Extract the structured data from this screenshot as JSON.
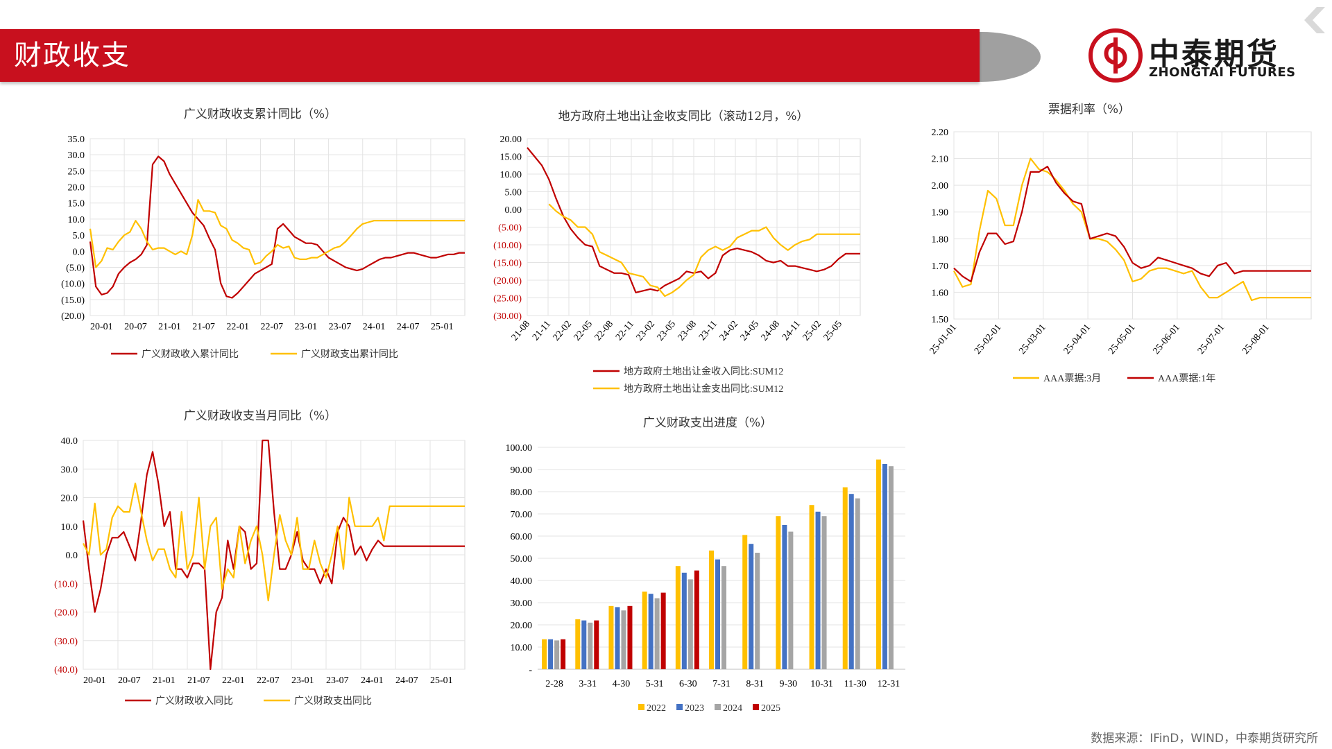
{
  "header": {
    "title": "财政收支"
  },
  "logo": {
    "cn": "中泰期货",
    "en": "ZHONGTAI FUTURES"
  },
  "source_text": "数据来源：IFinD，WIND，中泰期货研究所",
  "colors": {
    "red": "#c00000",
    "gold": "#ffc000",
    "blue": "#4472c4",
    "gray": "#a5a5a5",
    "brand": "#c8101e"
  },
  "chart_data": [
    {
      "id": "c1",
      "type": "line",
      "title": "广义财政收支累计同比（%）",
      "y_min": -20,
      "y_max": 35,
      "y_step": 5,
      "y_ticks": [
        "35.0",
        "30.0",
        "25.0",
        "20.0",
        "15.0",
        "10.0",
        "5.0",
        "0.0",
        "(5.0)",
        "(10.0)",
        "(15.0)",
        "(20.0)"
      ],
      "x_ticks": [
        "20-01",
        "20-07",
        "21-01",
        "21-07",
        "22-01",
        "22-07",
        "23-01",
        "23-07",
        "24-01",
        "24-07",
        "25-01"
      ],
      "n": 67,
      "series": [
        {
          "name": "广义财政收入累计同比",
          "color": "#c00000",
          "values": [
            3,
            -11,
            -13.5,
            -13,
            -11,
            -7,
            -5,
            -3.5,
            -2.5,
            -1,
            2,
            27,
            29.5,
            28,
            24,
            21,
            18,
            15,
            12,
            10,
            8,
            4,
            0.5,
            -10,
            -14,
            -14.5,
            -13,
            -11,
            -9,
            -7,
            -6,
            -5,
            -4,
            7,
            8.5,
            6.5,
            4.5,
            3.5,
            2.5,
            2.5,
            2,
            0,
            -2,
            -3,
            -4,
            -5,
            -5.5,
            -6,
            -5.5,
            -4.5,
            -3.5,
            -2.5,
            -2,
            -2,
            -1.5,
            -1,
            -0.5,
            -0.5,
            -1,
            -1.5,
            -2,
            -2,
            -1.5,
            -1,
            -1,
            -0.5,
            -0.5
          ]
        },
        {
          "name": "广义财政支出累计同比",
          "color": "#ffc000",
          "values": [
            7,
            -5,
            -3,
            1,
            0.5,
            3,
            5,
            6,
            9.5,
            7,
            3,
            0.5,
            1,
            1,
            0,
            -1,
            0,
            -1,
            5,
            16,
            12.5,
            12.5,
            12,
            8,
            7,
            3.5,
            2.5,
            1,
            0.5,
            -4,
            -3.5,
            -1.5,
            0,
            2,
            1,
            1.5,
            -2,
            -2.5,
            -2.5,
            -2,
            -2,
            -1,
            0,
            1,
            1.5,
            3,
            5,
            7,
            8.5,
            9,
            9.5,
            9.5,
            9.5,
            9.5,
            9.5,
            9.5,
            9.5,
            9.5,
            9.5,
            9.5,
            9.5,
            9.5,
            9.5,
            9.5,
            9.5,
            9.5,
            9.5
          ]
        }
      ]
    },
    {
      "id": "c2",
      "type": "line",
      "title": "地方政府土地出让金收支同比（滚动12月，%）",
      "y_min": -30,
      "y_max": 20,
      "y_step": 5,
      "y_ticks": [
        "20.00",
        "15.00",
        "10.00",
        "5.00",
        "0.00",
        "(5.00)",
        "(10.00)",
        "(15.00)",
        "(20.00)",
        "(25.00)",
        "(30.00)"
      ],
      "x_ticks": [
        "21-08",
        "21-11",
        "22-02",
        "22-05",
        "22-08",
        "22-11",
        "23-02",
        "23-05",
        "23-08",
        "23-11",
        "24-02",
        "24-05",
        "24-08",
        "24-11",
        "25-02",
        "25-05"
      ],
      "n": 47,
      "series": [
        {
          "name": "地方政府土地出让金收入同比:SUM12",
          "color": "#c00000",
          "values": [
            17.5,
            15,
            12.5,
            8.5,
            3,
            -2,
            -5.5,
            -8,
            -10,
            -10.5,
            -16,
            -17,
            -18,
            -18,
            -18.5,
            -23.5,
            -23,
            -22.5,
            -23,
            -21.5,
            -20.5,
            -19.5,
            -17.5,
            -18,
            -17.5,
            -19.5,
            -18,
            -13,
            -11.5,
            -11,
            -11.5,
            -12,
            -13,
            -14.5,
            -15,
            -14.5,
            -16,
            -16,
            -16.5,
            -17,
            -17.5,
            -17,
            -16,
            -14,
            -12.5,
            -12.5,
            -12.5
          ]
        },
        {
          "name": "地方政府土地出让金支出同比:SUM12",
          "color": "#ffc000",
          "values": [
            null,
            null,
            null,
            1.5,
            -0.5,
            -2,
            -3,
            -5,
            -5,
            -7,
            -12,
            -13,
            -14,
            -15,
            -18,
            -18.5,
            -19,
            -21.5,
            -22,
            -24.5,
            -23.5,
            -22,
            -20,
            -18.5,
            -13.5,
            -11.5,
            -10.5,
            -11.5,
            -10.5,
            -8,
            -7,
            -6,
            -6,
            -5,
            -8,
            -10,
            -11.5,
            -10,
            -9,
            -8.5,
            -7,
            -7,
            -7,
            -7,
            -7,
            -7,
            -7
          ]
        }
      ]
    },
    {
      "id": "c3",
      "type": "line",
      "title": "票据利率（%）",
      "y_min": 1.5,
      "y_max": 2.2,
      "y_step": 0.1,
      "y_ticks": [
        "2.20",
        "2.10",
        "2.00",
        "1.90",
        "1.80",
        "1.70",
        "1.60",
        "1.50"
      ],
      "x_ticks": [
        "25-01-01",
        "25-02-01",
        "25-03-01",
        "25-04-01",
        "25-05-01",
        "25-06-01",
        "25-07-01",
        "25-08-01"
      ],
      "n": 43,
      "series": [
        {
          "name": "AAA票据:3月",
          "color": "#ffc000",
          "values": [
            1.68,
            1.62,
            1.63,
            1.83,
            1.98,
            1.95,
            1.85,
            1.85,
            2.0,
            2.1,
            2.06,
            2.05,
            2.02,
            1.98,
            1.93,
            1.9,
            1.8,
            1.8,
            1.79,
            1.76,
            1.72,
            1.64,
            1.65,
            1.68,
            1.69,
            1.69,
            1.68,
            1.67,
            1.68,
            1.62,
            1.58,
            1.58,
            1.6,
            1.62,
            1.64,
            1.57,
            1.58,
            1.58,
            1.58,
            1.58,
            1.58,
            1.58,
            1.58
          ]
        },
        {
          "name": "AAA票据:1年",
          "color": "#c00000",
          "values": [
            1.69,
            1.66,
            1.64,
            1.75,
            1.82,
            1.82,
            1.78,
            1.79,
            1.9,
            2.05,
            2.05,
            2.07,
            2.01,
            1.97,
            1.94,
            1.93,
            1.8,
            1.81,
            1.82,
            1.81,
            1.77,
            1.71,
            1.69,
            1.7,
            1.73,
            1.72,
            1.71,
            1.7,
            1.69,
            1.67,
            1.66,
            1.7,
            1.71,
            1.67,
            1.68,
            1.68,
            1.68,
            1.68,
            1.68,
            1.68,
            1.68,
            1.68,
            1.68
          ]
        }
      ]
    },
    {
      "id": "c4",
      "type": "line",
      "title": "广义财政收支当月同比（%）",
      "y_min": -40,
      "y_max": 40,
      "y_step": 10,
      "y_ticks": [
        "40.0",
        "30.0",
        "20.0",
        "10.0",
        "0.0",
        "(10.0)",
        "(20.0)",
        "(30.0)",
        "(40.0)"
      ],
      "x_ticks": [
        "20-01",
        "20-07",
        "21-01",
        "21-07",
        "22-01",
        "22-07",
        "23-01",
        "23-07",
        "24-01",
        "24-07",
        "25-01"
      ],
      "n": 67,
      "series": [
        {
          "name": "广义财政收入同比",
          "color": "#c00000",
          "values": [
            12,
            -5,
            -20,
            -12,
            0,
            6,
            6,
            8,
            3,
            -2,
            12,
            28,
            36,
            25,
            10,
            15,
            -5,
            -5,
            -8,
            -3,
            -3,
            -5,
            -40,
            -20,
            -15,
            5,
            -5,
            10,
            8,
            -5,
            -3,
            40,
            40,
            15,
            -5,
            -5,
            0,
            8,
            -2,
            -5,
            -5,
            -10,
            -5,
            -10,
            8,
            13,
            10,
            0,
            3,
            -2,
            2,
            5,
            3,
            3,
            3,
            3,
            3,
            3,
            3,
            3,
            3,
            3,
            3,
            3,
            3,
            3,
            3
          ]
        },
        {
          "name": "广义财政支出同比",
          "color": "#ffc000",
          "values": [
            4,
            0,
            18,
            0,
            2,
            13,
            17,
            15,
            15,
            25,
            15,
            5,
            -2,
            2,
            2,
            -5,
            -8,
            15,
            -5,
            0,
            20,
            -5,
            10,
            13,
            -12,
            -5,
            -8,
            10,
            -3,
            5,
            10,
            0,
            -16,
            0,
            14,
            5,
            0,
            13,
            -5,
            -5,
            5,
            -3,
            -8,
            0,
            10,
            -5,
            20,
            10,
            10,
            10,
            10,
            13,
            5,
            17,
            17,
            17,
            17,
            17,
            17,
            17,
            17,
            17,
            17,
            17,
            17,
            17,
            17
          ]
        }
      ]
    },
    {
      "id": "c5",
      "type": "bar",
      "title": "广义财政支出进度（%）",
      "y_min": 0,
      "y_max": 100,
      "y_step": 10,
      "y_ticks": [
        "100.00",
        "90.00",
        "80.00",
        "70.00",
        "60.00",
        "50.00",
        "40.00",
        "30.00",
        "20.00",
        "10.00",
        "-"
      ],
      "categories": [
        "2-28",
        "3-31",
        "4-30",
        "5-31",
        "6-30",
        "7-31",
        "8-31",
        "9-30",
        "10-31",
        "11-30",
        "12-31"
      ],
      "series": [
        {
          "name": "2022",
          "color": "#ffc000",
          "values": [
            13.5,
            22.5,
            28.5,
            35,
            46.5,
            53.5,
            60.5,
            69,
            74,
            82,
            94.5
          ]
        },
        {
          "name": "2023",
          "color": "#4472c4",
          "values": [
            13.5,
            22,
            28,
            34,
            43.5,
            49.5,
            56.5,
            65,
            71,
            79,
            92.5
          ]
        },
        {
          "name": "2024",
          "color": "#a5a5a5",
          "values": [
            13,
            21,
            26.5,
            32,
            40.5,
            46.5,
            52.5,
            62,
            69,
            77,
            91.5
          ]
        },
        {
          "name": "2025",
          "color": "#c00000",
          "values": [
            13.5,
            22,
            28.5,
            34.5,
            44.5,
            null,
            null,
            null,
            null,
            null,
            null
          ]
        }
      ]
    }
  ]
}
